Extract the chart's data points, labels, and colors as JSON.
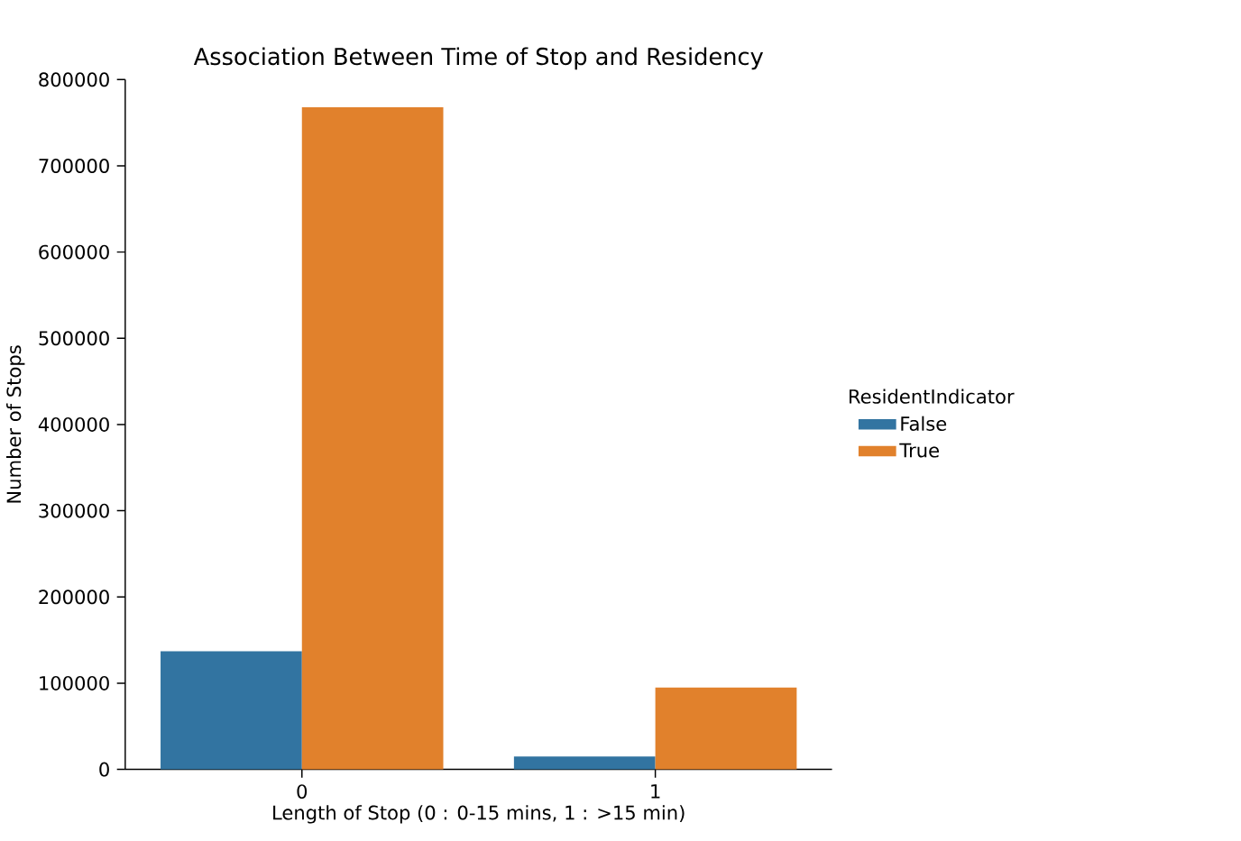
{
  "chart_data": {
    "type": "bar",
    "title": "Association Between Time of Stop and Residency",
    "xlabel": "Length of Stop (0 : 0-15 mins, 1 : >15 min)",
    "ylabel": "Number of Stops",
    "legend_title": "ResidentIndicator",
    "legend": "right",
    "categories": [
      "0",
      "1"
    ],
    "series": [
      {
        "name": "False",
        "color": "#3274a1",
        "values": [
          137000,
          15000
        ]
      },
      {
        "name": "True",
        "color": "#e1812c",
        "values": [
          768000,
          95000
        ]
      }
    ],
    "ylim": [
      0,
      800000
    ],
    "yticks": [
      0,
      100000,
      200000,
      300000,
      400000,
      500000,
      600000,
      700000,
      800000
    ]
  }
}
